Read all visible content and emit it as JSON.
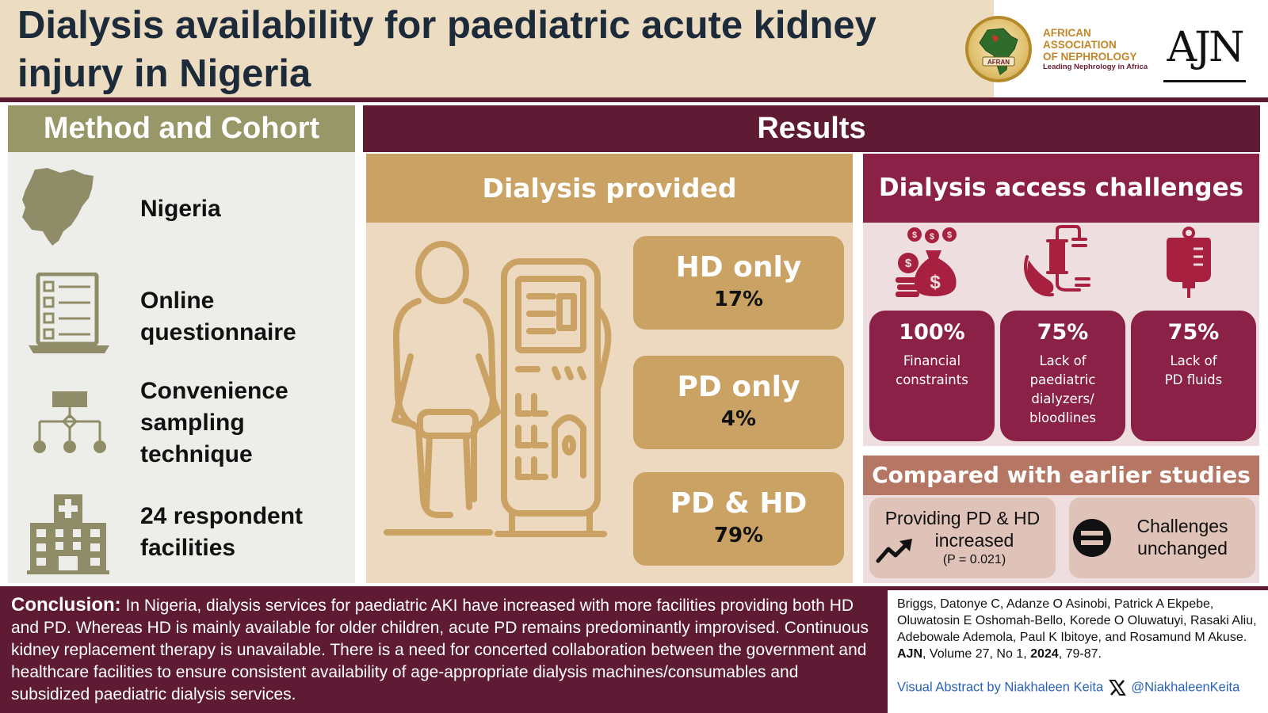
{
  "header": {
    "title_line1": "Dialysis availability for paediatric acute kidney",
    "title_line2": "injury in Nigeria",
    "afn_logo": {
      "badge_text": "AFRAN",
      "name_line1": "AFRICAN",
      "name_line2": "ASSOCIATION",
      "name_line3": "OF NEPHROLOGY",
      "tagline": "Leading Nephrology in Africa",
      "color": "#c48628"
    },
    "journal_logo": "AJN"
  },
  "method": {
    "heading": "Method and Cohort",
    "items": [
      {
        "icon": "nigeria-map-icon",
        "line1": "Nigeria",
        "line2": "",
        "line3": ""
      },
      {
        "icon": "questionnaire-laptop-icon",
        "line1": "Online",
        "line2": "questionnaire",
        "line3": ""
      },
      {
        "icon": "hierarchy-icon",
        "line1": "Convenience",
        "line2": "sampling",
        "line3": "technique"
      },
      {
        "icon": "hospital-icon",
        "line1": "24 respondent",
        "line2": "facilities",
        "line3": ""
      }
    ],
    "colors": {
      "header": "#989768",
      "icon": "#8f8d68"
    }
  },
  "results": {
    "heading": "Results",
    "dialysis_provided": {
      "heading": "Dialysis provided",
      "illustration": "dialysis-machine-patient-icon",
      "items": [
        {
          "label": "HD only",
          "percent": "17%"
        },
        {
          "label": "PD only",
          "percent": "4%"
        },
        {
          "label": "PD & HD",
          "percent": "79%"
        }
      ]
    },
    "challenges": {
      "heading": "Dialysis access challenges",
      "items": [
        {
          "percent": "100%",
          "line1": "Financial",
          "line2": "constraints",
          "line3": "",
          "line4": "",
          "icon": "money-bag-icon"
        },
        {
          "percent": "75%",
          "line1": "Lack of",
          "line2": "paediatric",
          "line3": "dialyzers/",
          "line4": "bloodlines",
          "icon": "dialyzer-hand-icon"
        },
        {
          "percent": "75%",
          "line1": "Lack of",
          "line2": "PD fluids",
          "line3": "",
          "line4": "",
          "icon": "fluid-bag-icon"
        }
      ]
    },
    "comparison": {
      "heading": "Compared with earlier studies",
      "increase": {
        "line1": "Providing PD & HD",
        "line2": "increased",
        "pvalue": "(P = 0.021)",
        "icon": "trend-up-icon"
      },
      "unchanged": {
        "line1": "Challenges",
        "line2": "unchanged",
        "icon": "equals-icon"
      }
    },
    "colors": {
      "gold": "#c9a264",
      "maroon": "#8c2148",
      "comparison": "#b57764"
    }
  },
  "conclusion": {
    "label": "Conclusion:",
    "text": "In Nigeria, dialysis services for paediatric AKI have increased with more facilities providing both HD and PD. Whereas HD is mainly available for older children, acute PD remains predominantly improvised. Continuous kidney replacement therapy is unavailable. There is a need for concerted collaboration between the government and  healthcare  facilities  to  ensure  consistent  availability  of age-appropriate  dialysis  machines/consumables  and  subsidized paediatric dialysis services."
  },
  "reference": {
    "authors": "Briggs, Datonye C, Adanze O Asinobi, Patrick A Ekpebe, Oluwatosin E Oshomah-Bello, Korede O Oluwatuyi, Rasaki Aliu, Adebowale Ademola, Paul K Ibitoye, and Rosamund M Akuse.",
    "journal": "AJN",
    "volume": ", Volume 27, No 1, ",
    "year": "2024",
    "pages": ", 79-87."
  },
  "credit": {
    "text": "Visual Abstract by Niakhaleen Keita",
    "handle": "@NiakhaleenKeita",
    "icon": "x-logo-icon",
    "color": "#2a62b8"
  }
}
